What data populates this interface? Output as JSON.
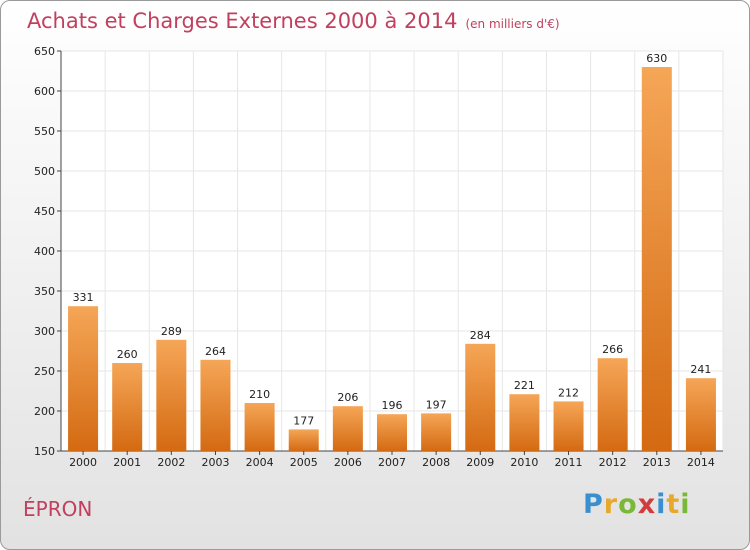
{
  "title": "Achats et Charges Externes 2000 à 2014",
  "subtitle": "(en milliers d'€)",
  "commune": "ÉPRON",
  "logo": {
    "letters": [
      "P",
      "r",
      "o",
      "x",
      "i",
      "t",
      "i"
    ],
    "colors": [
      "#3a8fd0",
      "#e8a92a",
      "#7ab838",
      "#d23b3b",
      "#3a8fd0",
      "#e8a92a",
      "#7ab838"
    ]
  },
  "colors": {
    "bar_light": "#f5a657",
    "bar_dark": "#d46a12",
    "grid": "#e6e6e6",
    "title": "#c2405e"
  },
  "chart_data": {
    "type": "bar",
    "title": "Achats et Charges Externes 2000 à 2014",
    "subtitle": "(en milliers d'€)",
    "categories": [
      "2000",
      "2001",
      "2002",
      "2003",
      "2004",
      "2005",
      "2006",
      "2007",
      "2008",
      "2009",
      "2010",
      "2011",
      "2012",
      "2013",
      "2014"
    ],
    "values": [
      331,
      260,
      289,
      264,
      210,
      177,
      206,
      196,
      197,
      284,
      221,
      212,
      266,
      630,
      241
    ],
    "ylim": [
      150,
      650
    ],
    "yticks": [
      150,
      200,
      250,
      300,
      350,
      400,
      450,
      500,
      550,
      600,
      650
    ],
    "grid": true,
    "xlabel": "",
    "ylabel": ""
  }
}
